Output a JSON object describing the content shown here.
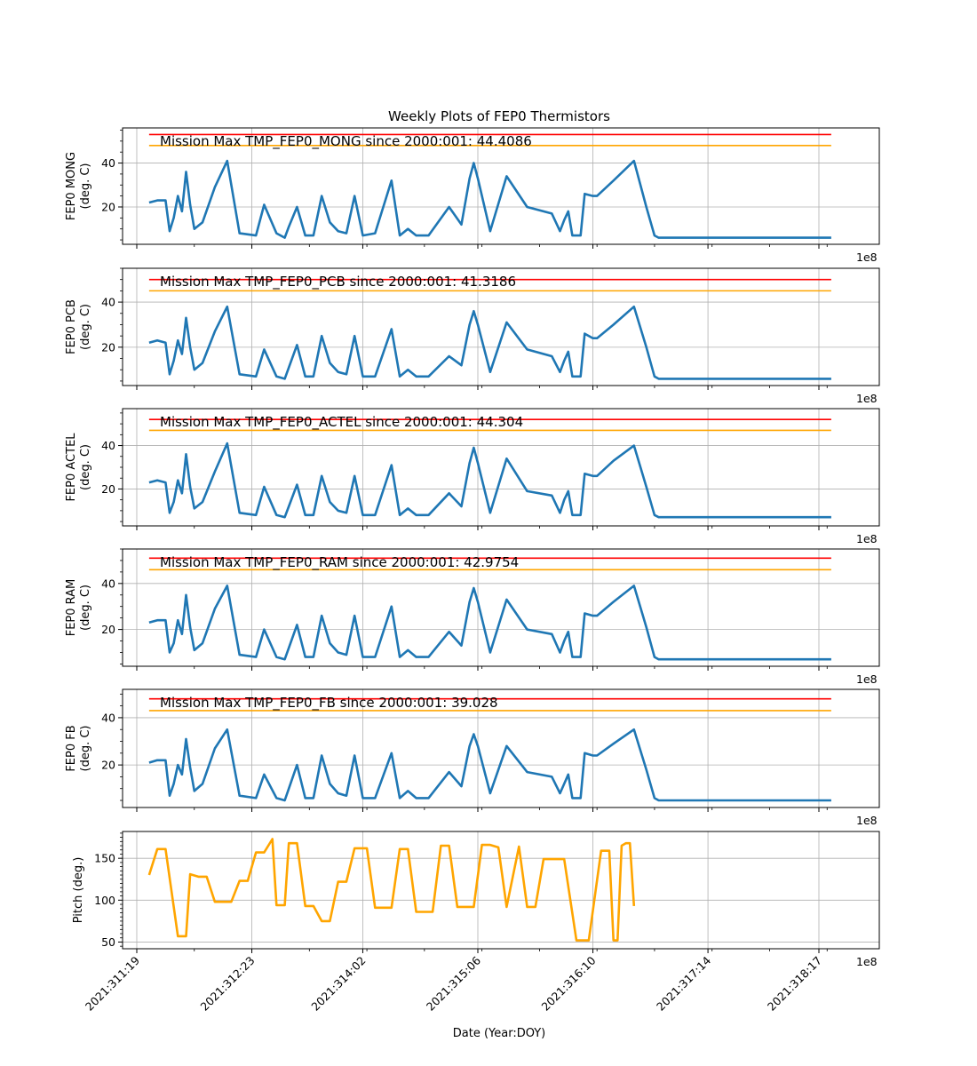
{
  "figure": {
    "title": "Weekly Plots of FEP0 Thermistors",
    "xlabel": "Date (Year:DOY)"
  },
  "chart_data": [
    {
      "type": "line",
      "name": "mong",
      "ylabel": "FEP0 MONG\n(deg. C)",
      "annotation": "Mission Max TMP_FEP0_MONG since 2000:001: 44.4086",
      "offset_label": "1e8",
      "ylim": [
        3,
        56
      ],
      "yticks": [
        20,
        40
      ],
      "red_limit": 53,
      "yellow_limit": 48,
      "line_color": "#1f77b4",
      "limit_colors": {
        "red": "#ff0000",
        "yellow": "#ffa500"
      },
      "x": [
        "2021:311:22",
        "2021:312:00",
        "2021:312:02",
        "2021:312:03",
        "2021:312:04",
        "2021:312:05",
        "2021:312:06",
        "2021:312:07",
        "2021:312:08",
        "2021:312:09",
        "2021:312:11",
        "2021:312:14",
        "2021:312:17",
        "2021:312:20",
        "2021:313:00",
        "2021:313:02",
        "2021:313:05",
        "2021:313:07",
        "2021:313:08",
        "2021:313:10",
        "2021:313:12",
        "2021:313:13",
        "2021:313:14",
        "2021:313:16",
        "2021:313:18",
        "2021:313:20",
        "2021:313:22",
        "2021:314:00",
        "2021:314:02",
        "2021:314:05",
        "2021:314:09",
        "2021:314:11",
        "2021:314:13",
        "2021:314:15",
        "2021:314:18",
        "2021:314:23",
        "2021:315:02",
        "2021:315:04",
        "2021:315:05",
        "2021:315:06",
        "2021:315:09",
        "2021:315:13",
        "2021:315:18",
        "2021:316:00",
        "2021:316:02",
        "2021:316:03",
        "2021:316:04",
        "2021:316:05",
        "2021:316:07",
        "2021:316:08",
        "2021:316:10",
        "2021:316:11",
        "2021:316:15",
        "2021:316:20",
        "2021:316:23",
        "2021:317:01",
        "2021:317:02",
        "2021:317:06",
        "2021:317:09",
        "2021:317:11",
        "2021:317:12",
        "2021:317:16",
        "2021:317:18",
        "2021:317:21",
        "2021:318:02",
        "2021:318:09",
        "2021:318:14",
        "2021:318:16",
        "2021:318:17",
        "2021:318:20"
      ],
      "y": [
        22,
        23,
        23,
        9,
        15,
        25,
        18,
        36,
        21,
        10,
        13,
        29,
        41,
        8,
        7,
        21,
        8,
        6,
        11,
        20,
        7,
        7,
        7,
        25,
        13,
        9,
        8,
        25,
        7,
        8,
        32,
        7,
        10,
        7,
        7,
        20,
        12,
        33,
        40,
        33,
        9,
        34,
        20,
        17,
        9,
        14,
        18,
        7,
        7,
        26,
        25,
        25,
        32,
        41,
        20,
        7,
        6,
        6,
        6,
        6,
        6,
        6,
        6,
        6,
        6,
        6,
        6,
        6,
        6,
        6
      ]
    },
    {
      "type": "line",
      "name": "pcb",
      "ylabel": "FEP0 PCB\n(deg. C)",
      "annotation": "Mission Max TMP_FEP0_PCB since 2000:001: 41.3186",
      "offset_label": "1e8",
      "ylim": [
        3,
        55
      ],
      "yticks": [
        20,
        40
      ],
      "red_limit": 50,
      "yellow_limit": 45,
      "line_color": "#1f77b4",
      "limit_colors": {
        "red": "#ff0000",
        "yellow": "#ffa500"
      },
      "x": [
        "2021:311:22",
        "2021:312:00",
        "2021:312:02",
        "2021:312:03",
        "2021:312:04",
        "2021:312:05",
        "2021:312:06",
        "2021:312:07",
        "2021:312:08",
        "2021:312:09",
        "2021:312:11",
        "2021:312:14",
        "2021:312:17",
        "2021:312:20",
        "2021:313:00",
        "2021:313:02",
        "2021:313:05",
        "2021:313:07",
        "2021:313:08",
        "2021:313:10",
        "2021:313:12",
        "2021:313:13",
        "2021:313:14",
        "2021:313:16",
        "2021:313:18",
        "2021:313:20",
        "2021:313:22",
        "2021:314:00",
        "2021:314:02",
        "2021:314:05",
        "2021:314:09",
        "2021:314:11",
        "2021:314:13",
        "2021:314:15",
        "2021:314:18",
        "2021:314:23",
        "2021:315:02",
        "2021:315:04",
        "2021:315:05",
        "2021:315:06",
        "2021:315:09",
        "2021:315:13",
        "2021:315:18",
        "2021:316:00",
        "2021:316:02",
        "2021:316:03",
        "2021:316:04",
        "2021:316:05",
        "2021:316:07",
        "2021:316:08",
        "2021:316:10",
        "2021:316:11",
        "2021:316:15",
        "2021:316:20",
        "2021:316:23",
        "2021:317:01",
        "2021:317:02",
        "2021:317:06",
        "2021:317:09",
        "2021:317:11",
        "2021:317:12",
        "2021:317:16",
        "2021:317:18",
        "2021:317:21",
        "2021:318:02",
        "2021:318:09",
        "2021:318:14",
        "2021:318:16",
        "2021:318:17",
        "2021:318:20"
      ],
      "y": [
        22,
        23,
        22,
        8,
        14,
        23,
        17,
        33,
        20,
        10,
        13,
        27,
        38,
        8,
        7,
        19,
        7,
        6,
        11,
        21,
        7,
        7,
        7,
        25,
        13,
        9,
        8,
        25,
        7,
        7,
        28,
        7,
        10,
        7,
        7,
        16,
        12,
        30,
        36,
        30,
        9,
        31,
        19,
        16,
        9,
        14,
        18,
        7,
        7,
        26,
        24,
        24,
        30,
        38,
        20,
        7,
        6,
        6,
        6,
        6,
        6,
        6,
        6,
        6,
        6,
        6,
        6,
        6,
        6,
        6
      ]
    },
    {
      "type": "line",
      "name": "actel",
      "ylabel": "FEP0 ACTEL\n(deg. C)",
      "annotation": "Mission Max TMP_FEP0_ACTEL since 2000:001: 44.304",
      "offset_label": "1e8",
      "ylim": [
        3,
        57
      ],
      "yticks": [
        20,
        40
      ],
      "red_limit": 52,
      "yellow_limit": 47,
      "line_color": "#1f77b4",
      "limit_colors": {
        "red": "#ff0000",
        "yellow": "#ffa500"
      },
      "x": [
        "2021:311:22",
        "2021:312:00",
        "2021:312:02",
        "2021:312:03",
        "2021:312:04",
        "2021:312:05",
        "2021:312:06",
        "2021:312:07",
        "2021:312:08",
        "2021:312:09",
        "2021:312:11",
        "2021:312:14",
        "2021:312:17",
        "2021:312:20",
        "2021:313:00",
        "2021:313:02",
        "2021:313:05",
        "2021:313:07",
        "2021:313:08",
        "2021:313:10",
        "2021:313:12",
        "2021:313:13",
        "2021:313:14",
        "2021:313:16",
        "2021:313:18",
        "2021:313:20",
        "2021:313:22",
        "2021:314:00",
        "2021:314:02",
        "2021:314:05",
        "2021:314:09",
        "2021:314:11",
        "2021:314:13",
        "2021:314:15",
        "2021:314:18",
        "2021:314:23",
        "2021:315:02",
        "2021:315:04",
        "2021:315:05",
        "2021:315:06",
        "2021:315:09",
        "2021:315:13",
        "2021:315:18",
        "2021:316:00",
        "2021:316:02",
        "2021:316:03",
        "2021:316:04",
        "2021:316:05",
        "2021:316:07",
        "2021:316:08",
        "2021:316:10",
        "2021:316:11",
        "2021:316:15",
        "2021:316:20",
        "2021:316:23",
        "2021:317:01",
        "2021:317:02",
        "2021:317:06",
        "2021:317:09",
        "2021:317:11",
        "2021:317:12",
        "2021:317:16",
        "2021:317:18",
        "2021:317:21",
        "2021:318:02",
        "2021:318:09",
        "2021:318:14",
        "2021:318:16",
        "2021:318:17",
        "2021:318:20"
      ],
      "y": [
        23,
        24,
        23,
        9,
        14,
        24,
        18,
        36,
        21,
        11,
        14,
        28,
        41,
        9,
        8,
        21,
        8,
        7,
        12,
        22,
        8,
        8,
        8,
        26,
        14,
        10,
        9,
        26,
        8,
        8,
        31,
        8,
        11,
        8,
        8,
        18,
        12,
        32,
        39,
        32,
        9,
        34,
        19,
        17,
        9,
        15,
        19,
        8,
        8,
        27,
        26,
        26,
        33,
        40,
        21,
        8,
        7,
        7,
        7,
        7,
        7,
        7,
        7,
        7,
        7,
        7,
        7,
        7,
        7,
        7
      ]
    },
    {
      "type": "line",
      "name": "ram",
      "ylabel": "FEP0 RAM\n(deg. C)",
      "annotation": "Mission Max TMP_FEP0_RAM since 2000:001: 42.9754",
      "offset_label": "1e8",
      "ylim": [
        4,
        55
      ],
      "yticks": [
        20,
        40
      ],
      "red_limit": 51,
      "yellow_limit": 46,
      "line_color": "#1f77b4",
      "limit_colors": {
        "red": "#ff0000",
        "yellow": "#ffa500"
      },
      "x": [
        "2021:311:22",
        "2021:312:00",
        "2021:312:02",
        "2021:312:03",
        "2021:312:04",
        "2021:312:05",
        "2021:312:06",
        "2021:312:07",
        "2021:312:08",
        "2021:312:09",
        "2021:312:11",
        "2021:312:14",
        "2021:312:17",
        "2021:312:20",
        "2021:313:00",
        "2021:313:02",
        "2021:313:05",
        "2021:313:07",
        "2021:313:08",
        "2021:313:10",
        "2021:313:12",
        "2021:313:13",
        "2021:313:14",
        "2021:313:16",
        "2021:313:18",
        "2021:313:20",
        "2021:313:22",
        "2021:314:00",
        "2021:314:02",
        "2021:314:05",
        "2021:314:09",
        "2021:314:11",
        "2021:314:13",
        "2021:314:15",
        "2021:314:18",
        "2021:314:23",
        "2021:315:02",
        "2021:315:04",
        "2021:315:05",
        "2021:315:06",
        "2021:315:09",
        "2021:315:13",
        "2021:315:18",
        "2021:316:00",
        "2021:316:02",
        "2021:316:03",
        "2021:316:04",
        "2021:316:05",
        "2021:316:07",
        "2021:316:08",
        "2021:316:10",
        "2021:316:11",
        "2021:316:15",
        "2021:316:20",
        "2021:316:23",
        "2021:317:01",
        "2021:317:02",
        "2021:317:06",
        "2021:317:09",
        "2021:317:11",
        "2021:317:12",
        "2021:317:16",
        "2021:317:18",
        "2021:317:21",
        "2021:318:02",
        "2021:318:09",
        "2021:318:14",
        "2021:318:16",
        "2021:318:17",
        "2021:318:20"
      ],
      "y": [
        23,
        24,
        24,
        10,
        14,
        24,
        18,
        35,
        21,
        11,
        14,
        29,
        39,
        9,
        8,
        20,
        8,
        7,
        12,
        22,
        8,
        8,
        8,
        26,
        14,
        10,
        9,
        26,
        8,
        8,
        30,
        8,
        11,
        8,
        8,
        19,
        13,
        32,
        38,
        32,
        10,
        33,
        20,
        18,
        10,
        15,
        19,
        8,
        8,
        27,
        26,
        26,
        32,
        39,
        21,
        8,
        7,
        7,
        7,
        7,
        7,
        7,
        7,
        7,
        7,
        7,
        7,
        7,
        7,
        7
      ]
    },
    {
      "type": "line",
      "name": "fb",
      "ylabel": "FEP0 FB\n(deg. C)",
      "annotation": "Mission Max TMP_FEP0_FB since 2000:001: 39.028",
      "offset_label": "1e8",
      "ylim": [
        2,
        52
      ],
      "yticks": [
        20,
        40
      ],
      "red_limit": 48,
      "yellow_limit": 43,
      "line_color": "#1f77b4",
      "limit_colors": {
        "red": "#ff0000",
        "yellow": "#ffa500"
      },
      "x": [
        "2021:311:22",
        "2021:312:00",
        "2021:312:02",
        "2021:312:03",
        "2021:312:04",
        "2021:312:05",
        "2021:312:06",
        "2021:312:07",
        "2021:312:08",
        "2021:312:09",
        "2021:312:11",
        "2021:312:14",
        "2021:312:17",
        "2021:312:20",
        "2021:313:00",
        "2021:313:02",
        "2021:313:05",
        "2021:313:07",
        "2021:313:08",
        "2021:313:10",
        "2021:313:12",
        "2021:313:13",
        "2021:313:14",
        "2021:313:16",
        "2021:313:18",
        "2021:313:20",
        "2021:313:22",
        "2021:314:00",
        "2021:314:02",
        "2021:314:05",
        "2021:314:09",
        "2021:314:11",
        "2021:314:13",
        "2021:314:15",
        "2021:314:18",
        "2021:314:23",
        "2021:315:02",
        "2021:315:04",
        "2021:315:05",
        "2021:315:06",
        "2021:315:09",
        "2021:315:13",
        "2021:315:18",
        "2021:316:00",
        "2021:316:02",
        "2021:316:03",
        "2021:316:04",
        "2021:316:05",
        "2021:316:07",
        "2021:316:08",
        "2021:316:10",
        "2021:316:11",
        "2021:316:15",
        "2021:316:20",
        "2021:316:23",
        "2021:317:01",
        "2021:317:02",
        "2021:317:06",
        "2021:317:09",
        "2021:317:11",
        "2021:317:12",
        "2021:317:16",
        "2021:317:18",
        "2021:317:21",
        "2021:318:02",
        "2021:318:09",
        "2021:318:14",
        "2021:318:16",
        "2021:318:17",
        "2021:318:20"
      ],
      "y": [
        21,
        22,
        22,
        7,
        12,
        20,
        16,
        31,
        19,
        9,
        12,
        27,
        35,
        7,
        6,
        16,
        6,
        5,
        10,
        20,
        6,
        6,
        6,
        24,
        12,
        8,
        7,
        24,
        6,
        6,
        25,
        6,
        9,
        6,
        6,
        17,
        11,
        28,
        33,
        28,
        8,
        28,
        17,
        15,
        8,
        12,
        16,
        6,
        6,
        25,
        24,
        24,
        29,
        35,
        18,
        6,
        5,
        5,
        5,
        5,
        5,
        5,
        5,
        5,
        5,
        5,
        5,
        5,
        5,
        5
      ]
    },
    {
      "type": "line",
      "name": "pitch",
      "ylabel": "Pitch (deg.)",
      "offset_label": "1e8",
      "ylim": [
        42,
        182
      ],
      "yticks": [
        50,
        100,
        150
      ],
      "line_color": "#ffa500",
      "xticks": [
        "2021:311:19",
        "2021:312:23",
        "2021:314:02",
        "2021:315:06",
        "2021:316:10",
        "2021:317:14",
        "2021:318:17"
      ],
      "x": [
        "2021:311:22",
        "2021:312:00",
        "2021:312:02",
        "2021:312:05",
        "2021:312:07",
        "2021:312:08",
        "2021:312:10",
        "2021:312:12",
        "2021:312:14",
        "2021:312:16",
        "2021:312:18",
        "2021:312:20",
        "2021:312:22",
        "2021:313:00",
        "2021:313:02",
        "2021:313:04",
        "2021:313:05",
        "2021:313:07",
        "2021:313:08",
        "2021:313:10",
        "2021:313:12",
        "2021:313:14",
        "2021:313:16",
        "2021:313:18",
        "2021:313:20",
        "2021:313:22",
        "2021:314:00",
        "2021:314:03",
        "2021:314:05",
        "2021:314:07",
        "2021:314:09",
        "2021:314:11",
        "2021:314:13",
        "2021:314:15",
        "2021:314:17",
        "2021:314:19",
        "2021:314:21",
        "2021:314:23",
        "2021:315:01",
        "2021:315:03",
        "2021:315:05",
        "2021:315:07",
        "2021:315:09",
        "2021:315:11",
        "2021:315:13",
        "2021:315:16",
        "2021:315:18",
        "2021:315:20",
        "2021:315:22",
        "2021:316:00",
        "2021:316:03",
        "2021:316:06",
        "2021:316:09",
        "2021:316:12",
        "2021:316:14",
        "2021:316:15",
        "2021:316:16",
        "2021:316:17",
        "2021:316:18",
        "2021:316:19",
        "2021:316:20"
      ],
      "y": [
        130,
        161,
        161,
        57,
        57,
        131,
        128,
        128,
        98,
        98,
        98,
        123,
        123,
        157,
        157,
        173,
        94,
        94,
        168,
        168,
        93,
        93,
        75,
        75,
        122,
        122,
        162,
        162,
        91,
        91,
        91,
        161,
        161,
        86,
        86,
        86,
        165,
        165,
        92,
        92,
        92,
        166,
        166,
        163,
        92,
        164,
        92,
        92,
        149,
        149,
        149,
        52,
        52,
        159,
        159,
        52,
        52,
        165,
        168,
        168,
        93
      ]
    }
  ]
}
